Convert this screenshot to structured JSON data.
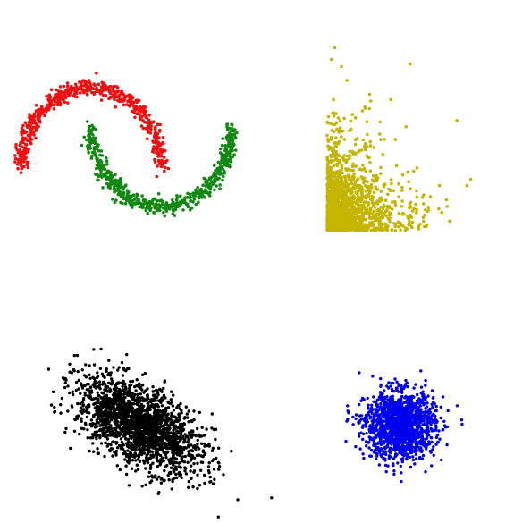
{
  "figure": {
    "background": "#ffffff"
  },
  "chart_data": [
    {
      "type": "scatter",
      "name": "two-moons",
      "grid": false,
      "axes_visible": false,
      "xlim": [
        -1.2,
        2.2
      ],
      "ylim": [
        -0.65,
        1.15
      ],
      "series": [
        {
          "color": "#ee1111",
          "shape": "upper-moon",
          "count": 600,
          "noise": 0.05,
          "points_sample": [
            [
              -1.0,
              0.0
            ],
            [
              -0.7,
              0.71
            ],
            [
              0.0,
              1.0
            ],
            [
              0.7,
              0.71
            ],
            [
              1.0,
              0.0
            ]
          ]
        },
        {
          "color": "#118811",
          "shape": "lower-moon",
          "count": 600,
          "noise": 0.05,
          "points_sample": [
            [
              0.0,
              0.5
            ],
            [
              0.3,
              -0.21
            ],
            [
              1.0,
              -0.5
            ],
            [
              1.7,
              -0.21
            ],
            [
              2.0,
              0.5
            ]
          ]
        }
      ]
    },
    {
      "type": "scatter",
      "name": "skewed-corner-cloud",
      "grid": false,
      "axes_visible": false,
      "xlim": [
        0,
        5
      ],
      "ylim": [
        0,
        6
      ],
      "series": [
        {
          "color": "#c4b500",
          "distribution": "exponential",
          "count": 1800,
          "x_mean": 0.6,
          "y_mean": 0.7
        }
      ]
    },
    {
      "type": "scatter",
      "name": "correlated-gaussian",
      "grid": false,
      "axes_visible": false,
      "xlim": [
        -4,
        4
      ],
      "ylim": [
        -4,
        4
      ],
      "series": [
        {
          "color": "#000000",
          "distribution": "gaussian",
          "count": 2000,
          "mean": [
            0,
            0
          ],
          "std": [
            1.0,
            1.0
          ],
          "correlation": -0.55
        }
      ]
    },
    {
      "type": "scatter",
      "name": "isotropic-gaussian",
      "grid": false,
      "axes_visible": false,
      "xlim": [
        -4,
        4
      ],
      "ylim": [
        -4,
        4
      ],
      "series": [
        {
          "color": "#0000ee",
          "distribution": "gaussian",
          "count": 1500,
          "mean": [
            0,
            0
          ],
          "std": [
            1.0,
            1.0
          ],
          "correlation": 0
        }
      ]
    }
  ]
}
